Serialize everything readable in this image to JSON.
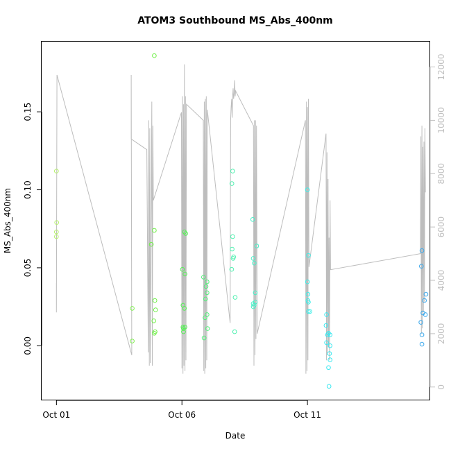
{
  "chart_data": {
    "type": "scatter",
    "title": "ATOM3 Southbound MS_Abs_400nm",
    "xlabel": "Date",
    "ylabel": "MS_Abs_400nm",
    "x_unit": "days in October",
    "xlim": [
      0.41,
      15.89
    ],
    "ylim": [
      -0.035,
      0.195
    ],
    "y2lim": [
      -500,
      12950
    ],
    "grid": false,
    "legend": "none",
    "x_ticks": [
      {
        "value": 1,
        "label": "Oct 01"
      },
      {
        "value": 6,
        "label": "Oct 06"
      },
      {
        "value": 11,
        "label": "Oct 11"
      }
    ],
    "y_ticks": [
      {
        "value": 0.0,
        "label": "0.00"
      },
      {
        "value": 0.05,
        "label": "0.05"
      },
      {
        "value": 0.1,
        "label": "0.10"
      },
      {
        "value": 0.15,
        "label": "0.15"
      }
    ],
    "y2_ticks": [
      {
        "value": 0,
        "label": "0"
      },
      {
        "value": 2000,
        "label": "2000"
      },
      {
        "value": 4000,
        "label": "4000"
      },
      {
        "value": 6000,
        "label": "6000"
      },
      {
        "value": 8000,
        "label": "8000"
      },
      {
        "value": 10000,
        "label": "10000"
      },
      {
        "value": 12000,
        "label": "12000"
      }
    ],
    "points": [
      {
        "x": 1.0,
        "y": 0.112,
        "color": "#b4f06a"
      },
      {
        "x": 1.01,
        "y": 0.079,
        "color": "#b4f06a"
      },
      {
        "x": 1.0,
        "y": 0.073,
        "color": "#b4f06a"
      },
      {
        "x": 1.0,
        "y": 0.07,
        "color": "#b4f06a"
      },
      {
        "x": 4.02,
        "y": 0.024,
        "color": "#80f050"
      },
      {
        "x": 4.02,
        "y": 0.003,
        "color": "#80f050"
      },
      {
        "x": 4.78,
        "y": 0.065,
        "color": "#70f048"
      },
      {
        "x": 4.9,
        "y": 0.186,
        "color": "#70f048"
      },
      {
        "x": 4.9,
        "y": 0.074,
        "color": "#70f048"
      },
      {
        "x": 4.92,
        "y": 0.029,
        "color": "#70f048"
      },
      {
        "x": 4.95,
        "y": 0.023,
        "color": "#70f048"
      },
      {
        "x": 4.88,
        "y": 0.016,
        "color": "#70f048"
      },
      {
        "x": 4.93,
        "y": 0.009,
        "color": "#70f048"
      },
      {
        "x": 4.9,
        "y": 0.008,
        "color": "#70f048"
      },
      {
        "x": 6.02,
        "y": 0.049,
        "color": "#55f055"
      },
      {
        "x": 6.1,
        "y": 0.073,
        "color": "#55f055"
      },
      {
        "x": 6.15,
        "y": 0.072,
        "color": "#55f055"
      },
      {
        "x": 6.12,
        "y": 0.046,
        "color": "#55f055"
      },
      {
        "x": 6.04,
        "y": 0.026,
        "color": "#55f055"
      },
      {
        "x": 6.1,
        "y": 0.024,
        "color": "#55f055"
      },
      {
        "x": 6.04,
        "y": 0.012,
        "color": "#55f055"
      },
      {
        "x": 6.12,
        "y": 0.012,
        "color": "#55f055"
      },
      {
        "x": 6.06,
        "y": 0.011,
        "color": "#55f055"
      },
      {
        "x": 6.06,
        "y": 0.009,
        "color": "#55f055"
      },
      {
        "x": 6.86,
        "y": 0.044,
        "color": "#50f078"
      },
      {
        "x": 7.0,
        "y": 0.041,
        "color": "#50f078"
      },
      {
        "x": 6.96,
        "y": 0.038,
        "color": "#50f078"
      },
      {
        "x": 7.0,
        "y": 0.034,
        "color": "#50f078"
      },
      {
        "x": 6.94,
        "y": 0.03,
        "color": "#50f078"
      },
      {
        "x": 7.0,
        "y": 0.02,
        "color": "#50f078"
      },
      {
        "x": 6.92,
        "y": 0.018,
        "color": "#50f078"
      },
      {
        "x": 7.02,
        "y": 0.011,
        "color": "#50f078"
      },
      {
        "x": 6.88,
        "y": 0.005,
        "color": "#50f078"
      },
      {
        "x": 8.02,
        "y": 0.112,
        "color": "#50f0b0"
      },
      {
        "x": 7.99,
        "y": 0.104,
        "color": "#50f0b0"
      },
      {
        "x": 8.02,
        "y": 0.07,
        "color": "#50f0b0"
      },
      {
        "x": 8.0,
        "y": 0.062,
        "color": "#50f0b0"
      },
      {
        "x": 8.06,
        "y": 0.057,
        "color": "#50f0b0"
      },
      {
        "x": 8.04,
        "y": 0.056,
        "color": "#50f0b0"
      },
      {
        "x": 7.98,
        "y": 0.049,
        "color": "#50f0b0"
      },
      {
        "x": 8.12,
        "y": 0.031,
        "color": "#50f0b0"
      },
      {
        "x": 8.1,
        "y": 0.009,
        "color": "#50f0b0"
      },
      {
        "x": 8.82,
        "y": 0.081,
        "color": "#48f0c8"
      },
      {
        "x": 8.98,
        "y": 0.064,
        "color": "#48f0c8"
      },
      {
        "x": 8.84,
        "y": 0.056,
        "color": "#48f0c8"
      },
      {
        "x": 8.88,
        "y": 0.053,
        "color": "#48f0c8"
      },
      {
        "x": 8.92,
        "y": 0.034,
        "color": "#48f0c8"
      },
      {
        "x": 8.92,
        "y": 0.028,
        "color": "#48f0c8"
      },
      {
        "x": 8.84,
        "y": 0.027,
        "color": "#48f0c8"
      },
      {
        "x": 8.88,
        "y": 0.026,
        "color": "#48f0c8"
      },
      {
        "x": 8.84,
        "y": 0.025,
        "color": "#48f0c8"
      },
      {
        "x": 11.0,
        "y": 0.1,
        "color": "#40eee8"
      },
      {
        "x": 11.04,
        "y": 0.058,
        "color": "#40eee8"
      },
      {
        "x": 11.0,
        "y": 0.041,
        "color": "#40eee8"
      },
      {
        "x": 11.02,
        "y": 0.033,
        "color": "#40eee8"
      },
      {
        "x": 11.02,
        "y": 0.029,
        "color": "#40eee8"
      },
      {
        "x": 11.04,
        "y": 0.028,
        "color": "#40eee8"
      },
      {
        "x": 11.04,
        "y": 0.022,
        "color": "#40eee8"
      },
      {
        "x": 11.1,
        "y": 0.022,
        "color": "#40eee8"
      },
      {
        "x": 11.76,
        "y": 0.02,
        "color": "#38e8f0"
      },
      {
        "x": 11.74,
        "y": 0.013,
        "color": "#38e8f0"
      },
      {
        "x": 11.84,
        "y": 0.008,
        "color": "#38e8f0"
      },
      {
        "x": 11.9,
        "y": 0.007,
        "color": "#38e8f0"
      },
      {
        "x": 11.8,
        "y": 0.007,
        "color": "#38e8f0"
      },
      {
        "x": 11.9,
        "y": 0.0,
        "color": "#38e8f0"
      },
      {
        "x": 11.76,
        "y": 0.002,
        "color": "#38e8f0"
      },
      {
        "x": 11.88,
        "y": -0.005,
        "color": "#38e8f0"
      },
      {
        "x": 11.9,
        "y": -0.009,
        "color": "#38e8f0"
      },
      {
        "x": 11.84,
        "y": -0.014,
        "color": "#38e8f0"
      },
      {
        "x": 11.86,
        "y": -0.026,
        "color": "#38e8f0"
      },
      {
        "x": 15.56,
        "y": 0.061,
        "color": "#3aa8ec"
      },
      {
        "x": 15.54,
        "y": 0.051,
        "color": "#3aa8ec"
      },
      {
        "x": 15.72,
        "y": 0.033,
        "color": "#3aa8ec"
      },
      {
        "x": 15.66,
        "y": 0.029,
        "color": "#3aa8ec"
      },
      {
        "x": 15.6,
        "y": 0.021,
        "color": "#3aa8ec"
      },
      {
        "x": 15.7,
        "y": 0.02,
        "color": "#3aa8ec"
      },
      {
        "x": 15.52,
        "y": 0.015,
        "color": "#3aa8ec"
      },
      {
        "x": 15.56,
        "y": 0.007,
        "color": "#3aa8ec"
      },
      {
        "x": 15.56,
        "y": 0.001,
        "color": "#3aa8ec"
      }
    ],
    "altitude_series": {
      "axis": "right",
      "color": "#bdbdbd",
      "points": [
        [
          1.0,
          3900
        ],
        [
          1.0,
          2800
        ],
        [
          1.02,
          11700
        ],
        [
          4.0,
          1200
        ],
        [
          3.98,
          11700
        ],
        [
          3.98,
          9300
        ],
        [
          4.6,
          8900
        ],
        [
          4.66,
          1300
        ],
        [
          4.68,
          10000
        ],
        [
          4.7,
          800
        ],
        [
          4.72,
          9700
        ],
        [
          4.74,
          900
        ],
        [
          4.8,
          10700
        ],
        [
          4.82,
          800
        ],
        [
          4.84,
          9800
        ],
        [
          4.86,
          7000
        ],
        [
          5.98,
          10300
        ],
        [
          6.0,
          700
        ],
        [
          6.02,
          10900
        ],
        [
          6.04,
          500
        ],
        [
          6.06,
          10600
        ],
        [
          6.08,
          800
        ],
        [
          6.1,
          12100
        ],
        [
          6.12,
          600
        ],
        [
          6.14,
          10900
        ],
        [
          6.16,
          1000
        ],
        [
          6.18,
          10600
        ],
        [
          6.85,
          10000
        ],
        [
          6.87,
          600
        ],
        [
          6.89,
          10700
        ],
        [
          6.91,
          500
        ],
        [
          6.93,
          10800
        ],
        [
          6.95,
          700
        ],
        [
          6.97,
          10900
        ],
        [
          6.99,
          1000
        ],
        [
          7.01,
          10400
        ],
        [
          7.92,
          2400
        ],
        [
          7.94,
          10000
        ],
        [
          7.96,
          10500
        ],
        [
          7.98,
          10800
        ],
        [
          8.0,
          10100
        ],
        [
          8.02,
          10900
        ],
        [
          8.04,
          11200
        ],
        [
          8.06,
          10800
        ],
        [
          8.08,
          11000
        ],
        [
          8.1,
          11500
        ],
        [
          8.12,
          10900
        ],
        [
          8.14,
          11100
        ],
        [
          8.85,
          9800
        ],
        [
          8.87,
          800
        ],
        [
          8.89,
          10000
        ],
        [
          8.91,
          1200
        ],
        [
          8.93,
          10000
        ],
        [
          8.95,
          1800
        ],
        [
          8.97,
          9800
        ],
        [
          9.0,
          2000
        ],
        [
          10.92,
          10000
        ],
        [
          10.94,
          500
        ],
        [
          10.96,
          10700
        ],
        [
          10.98,
          600
        ],
        [
          11.0,
          10500
        ],
        [
          11.02,
          1000
        ],
        [
          11.04,
          10800
        ],
        [
          11.06,
          4500
        ],
        [
          11.74,
          9500
        ],
        [
          11.76,
          1000
        ],
        [
          11.78,
          8800
        ],
        [
          11.8,
          1200
        ],
        [
          11.82,
          7800
        ],
        [
          11.84,
          1500
        ],
        [
          11.86,
          5600
        ],
        [
          11.88,
          1000
        ],
        [
          11.9,
          7000
        ],
        [
          11.92,
          4400
        ],
        [
          15.5,
          5000
        ],
        [
          15.52,
          9400
        ],
        [
          15.54,
          2000
        ],
        [
          15.56,
          9800
        ],
        [
          15.58,
          2200
        ],
        [
          15.6,
          9000
        ],
        [
          15.62,
          2800
        ],
        [
          15.64,
          9200
        ],
        [
          15.66,
          3200
        ],
        [
          15.68,
          9700
        ],
        [
          15.7,
          7300
        ]
      ]
    }
  }
}
